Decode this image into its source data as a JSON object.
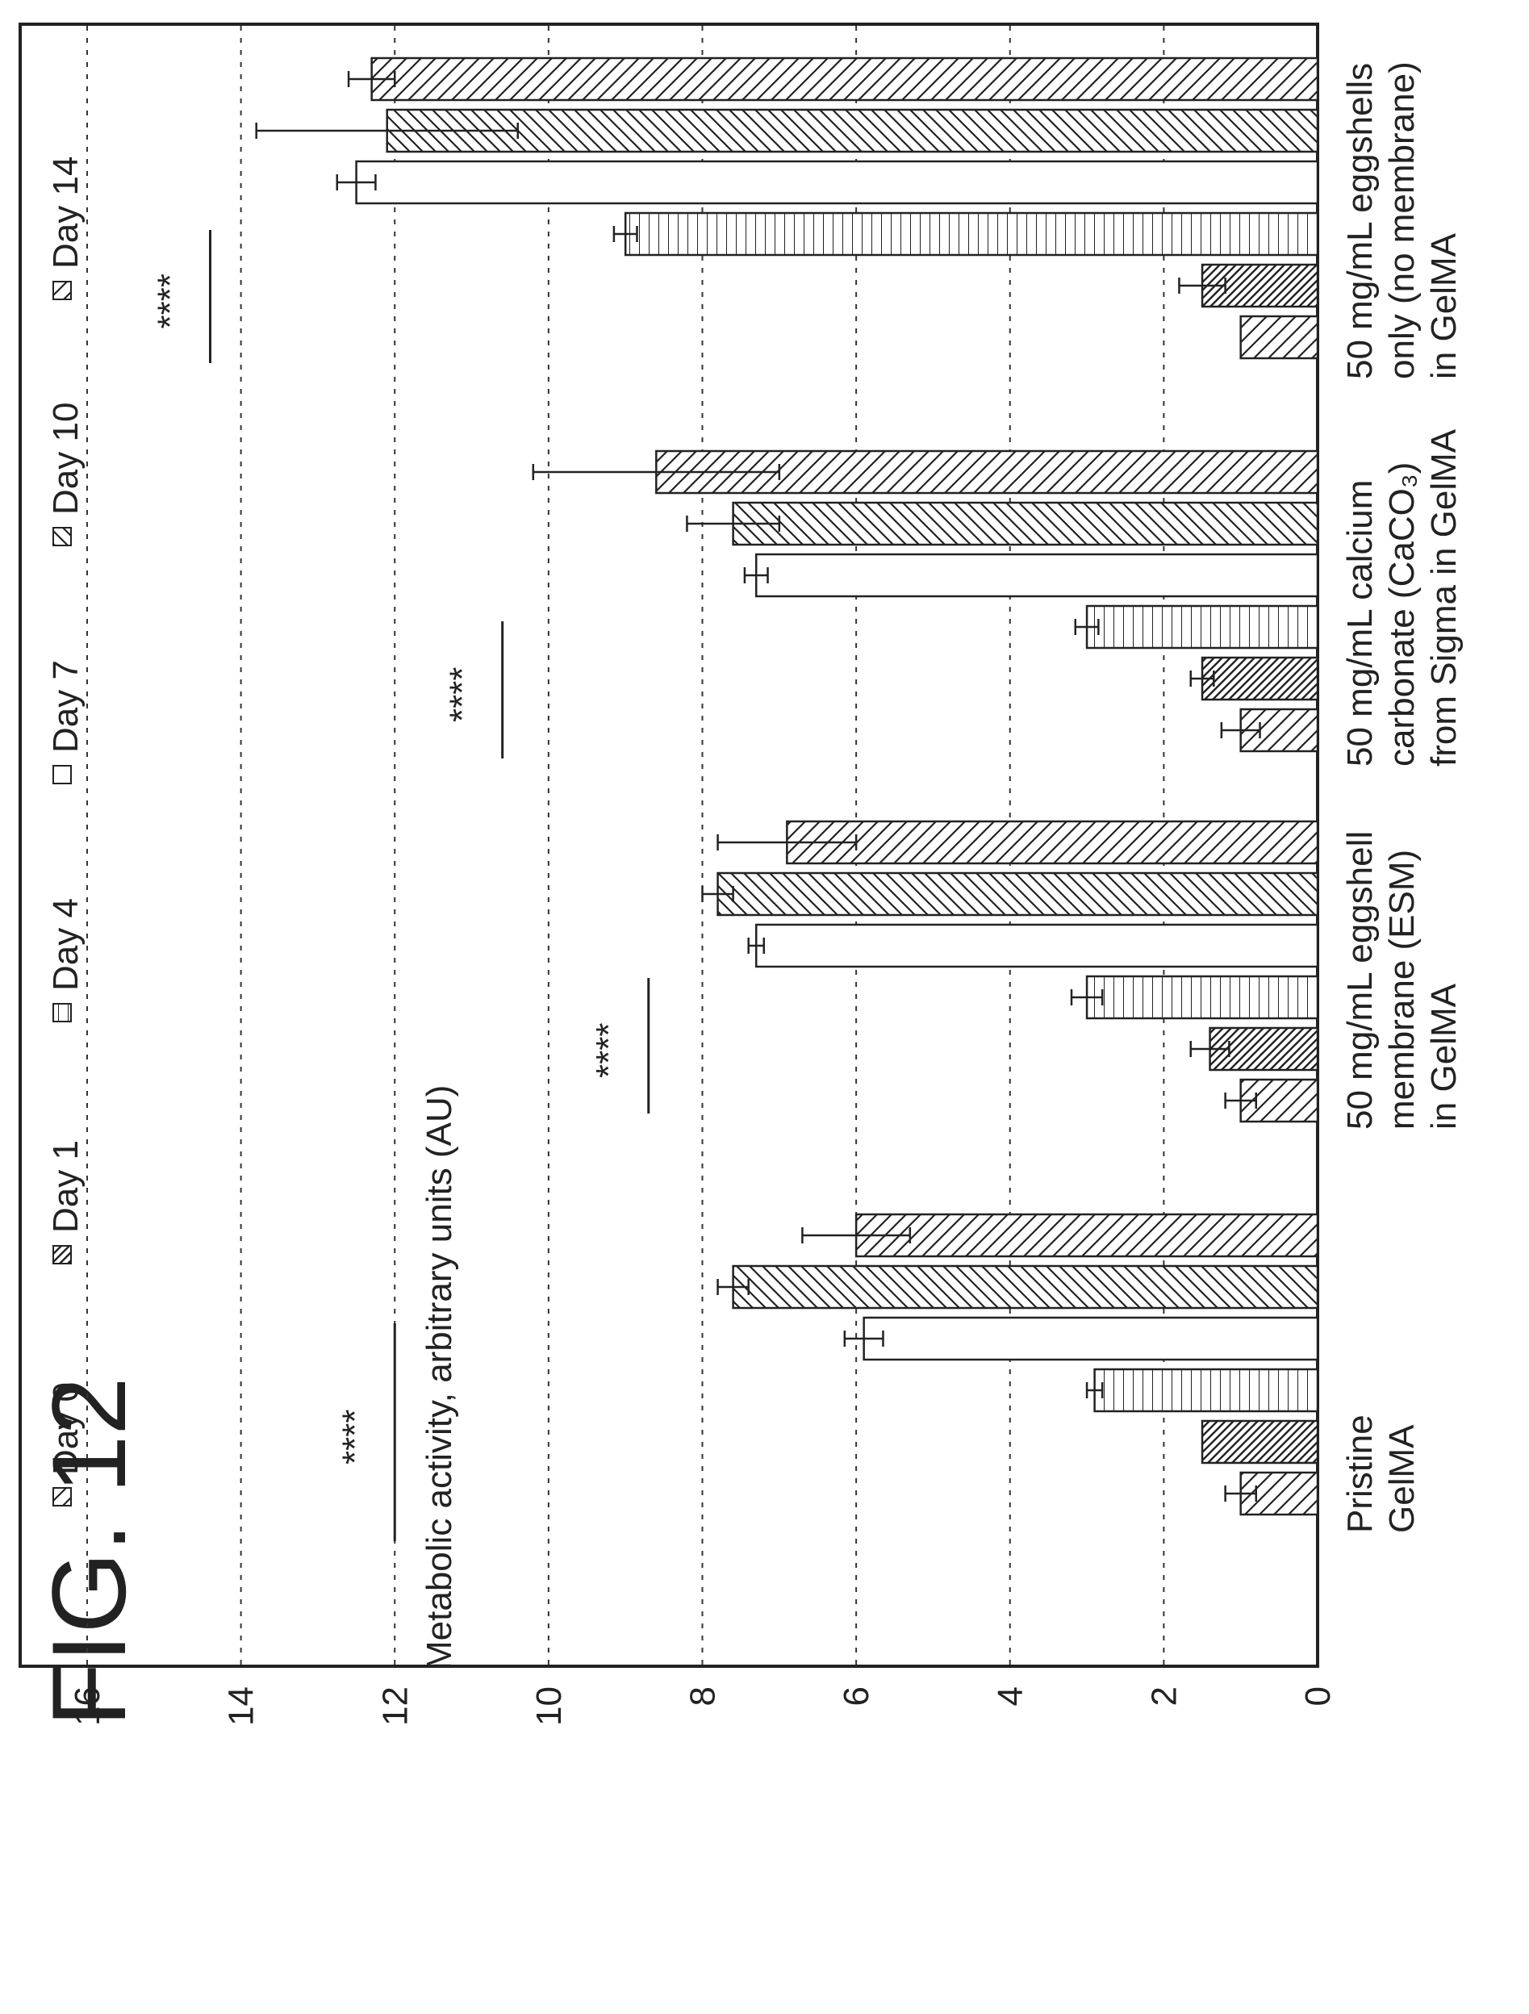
{
  "figure": {
    "label": "FIG. 12"
  },
  "chart_data": {
    "type": "bar",
    "title": "",
    "xlabel": "",
    "ylabel": "Metabolic activity, arbitrary units (AU)",
    "ylim": [
      0,
      16
    ],
    "yticks": [
      0,
      2,
      4,
      6,
      8,
      10,
      12,
      14,
      16
    ],
    "grid": true,
    "orientation": "vertical bars, page rotated 90 degrees",
    "legend_position": "top",
    "categories": [
      [
        "Pristine",
        "GelMA"
      ],
      [
        "50 mg/mL eggshell",
        "membrane (ESM)",
        "in GelMA"
      ],
      [
        "50 mg/mL calcium",
        "carbonate (CaCO₃)",
        "from Sigma in GelMA"
      ],
      [
        "50 mg/mL eggshells",
        "only (no membrane)",
        "in GelMA"
      ]
    ],
    "series": [
      {
        "name": "Day 0",
        "pattern": "diag-right",
        "values": [
          1.0,
          1.0,
          1.0,
          1.0
        ],
        "errors": [
          0.2,
          0.2,
          0.25,
          0.0
        ]
      },
      {
        "name": "Day 1",
        "pattern": "diag-dense",
        "values": [
          1.5,
          1.4,
          1.5,
          1.5
        ],
        "errors": [
          0.0,
          0.25,
          0.15,
          0.3
        ]
      },
      {
        "name": "Day 4",
        "pattern": "horizontal",
        "values": [
          2.9,
          3.0,
          3.0,
          9.0
        ],
        "errors": [
          0.1,
          0.2,
          0.15,
          0.15
        ]
      },
      {
        "name": "Day 7",
        "pattern": "open",
        "values": [
          5.9,
          7.3,
          7.3,
          12.5
        ],
        "errors": [
          0.25,
          0.1,
          0.15,
          0.25
        ]
      },
      {
        "name": "Day 10",
        "pattern": "diag-left",
        "values": [
          7.6,
          7.8,
          7.6,
          12.1
        ],
        "errors": [
          0.2,
          0.2,
          0.6,
          1.7
        ]
      },
      {
        "name": "Day 14",
        "pattern": "diag-right",
        "values": [
          6.0,
          6.9,
          8.6,
          12.3
        ],
        "errors": [
          0.7,
          0.9,
          1.6,
          0.3
        ]
      }
    ],
    "significance": [
      {
        "label": "****",
        "from": 0,
        "to": 5,
        "y": 12.0
      },
      {
        "label": "****",
        "from": 0,
        "to": 5,
        "y": 8.7
      },
      {
        "label": "****",
        "from": 0,
        "to": 5,
        "y": 10.6
      },
      {
        "label": "****",
        "from": 0,
        "to": 5,
        "y": 14.4
      }
    ]
  }
}
